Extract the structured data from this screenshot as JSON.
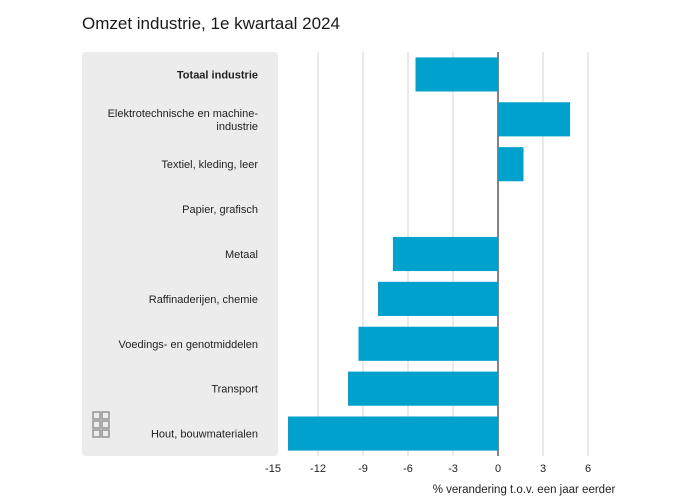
{
  "chart_data": {
    "type": "bar",
    "orientation": "horizontal",
    "title": "Omzet industrie, 1e kwartaal 2024",
    "xlabel": "% verandering t.o.v. een jaar eerder",
    "ylabel": "",
    "xlim": [
      -15,
      6
    ],
    "xticks": [
      -15,
      -12,
      -9,
      -6,
      -3,
      0,
      3,
      6
    ],
    "grid": true,
    "categories": [
      [
        "Totaal industrie"
      ],
      [
        "Elektrotechnische en machine-",
        "industrie"
      ],
      [
        "Textiel, kleding, leer"
      ],
      [
        "Papier, grafisch"
      ],
      [
        "Metaal"
      ],
      [
        "Raffinaderijen, chemie"
      ],
      [
        "Voedings- en genotmiddelen"
      ],
      [
        "Transport"
      ],
      [
        "Hout, bouwmaterialen"
      ]
    ],
    "values": [
      -5.5,
      4.8,
      1.7,
      0.0,
      -7.0,
      -8.0,
      -9.3,
      -10.0,
      -14.0
    ],
    "bold_categories": [
      0
    ],
    "bar_color": "#00a1cd"
  },
  "logo_icon": "cbs-logo-icon"
}
